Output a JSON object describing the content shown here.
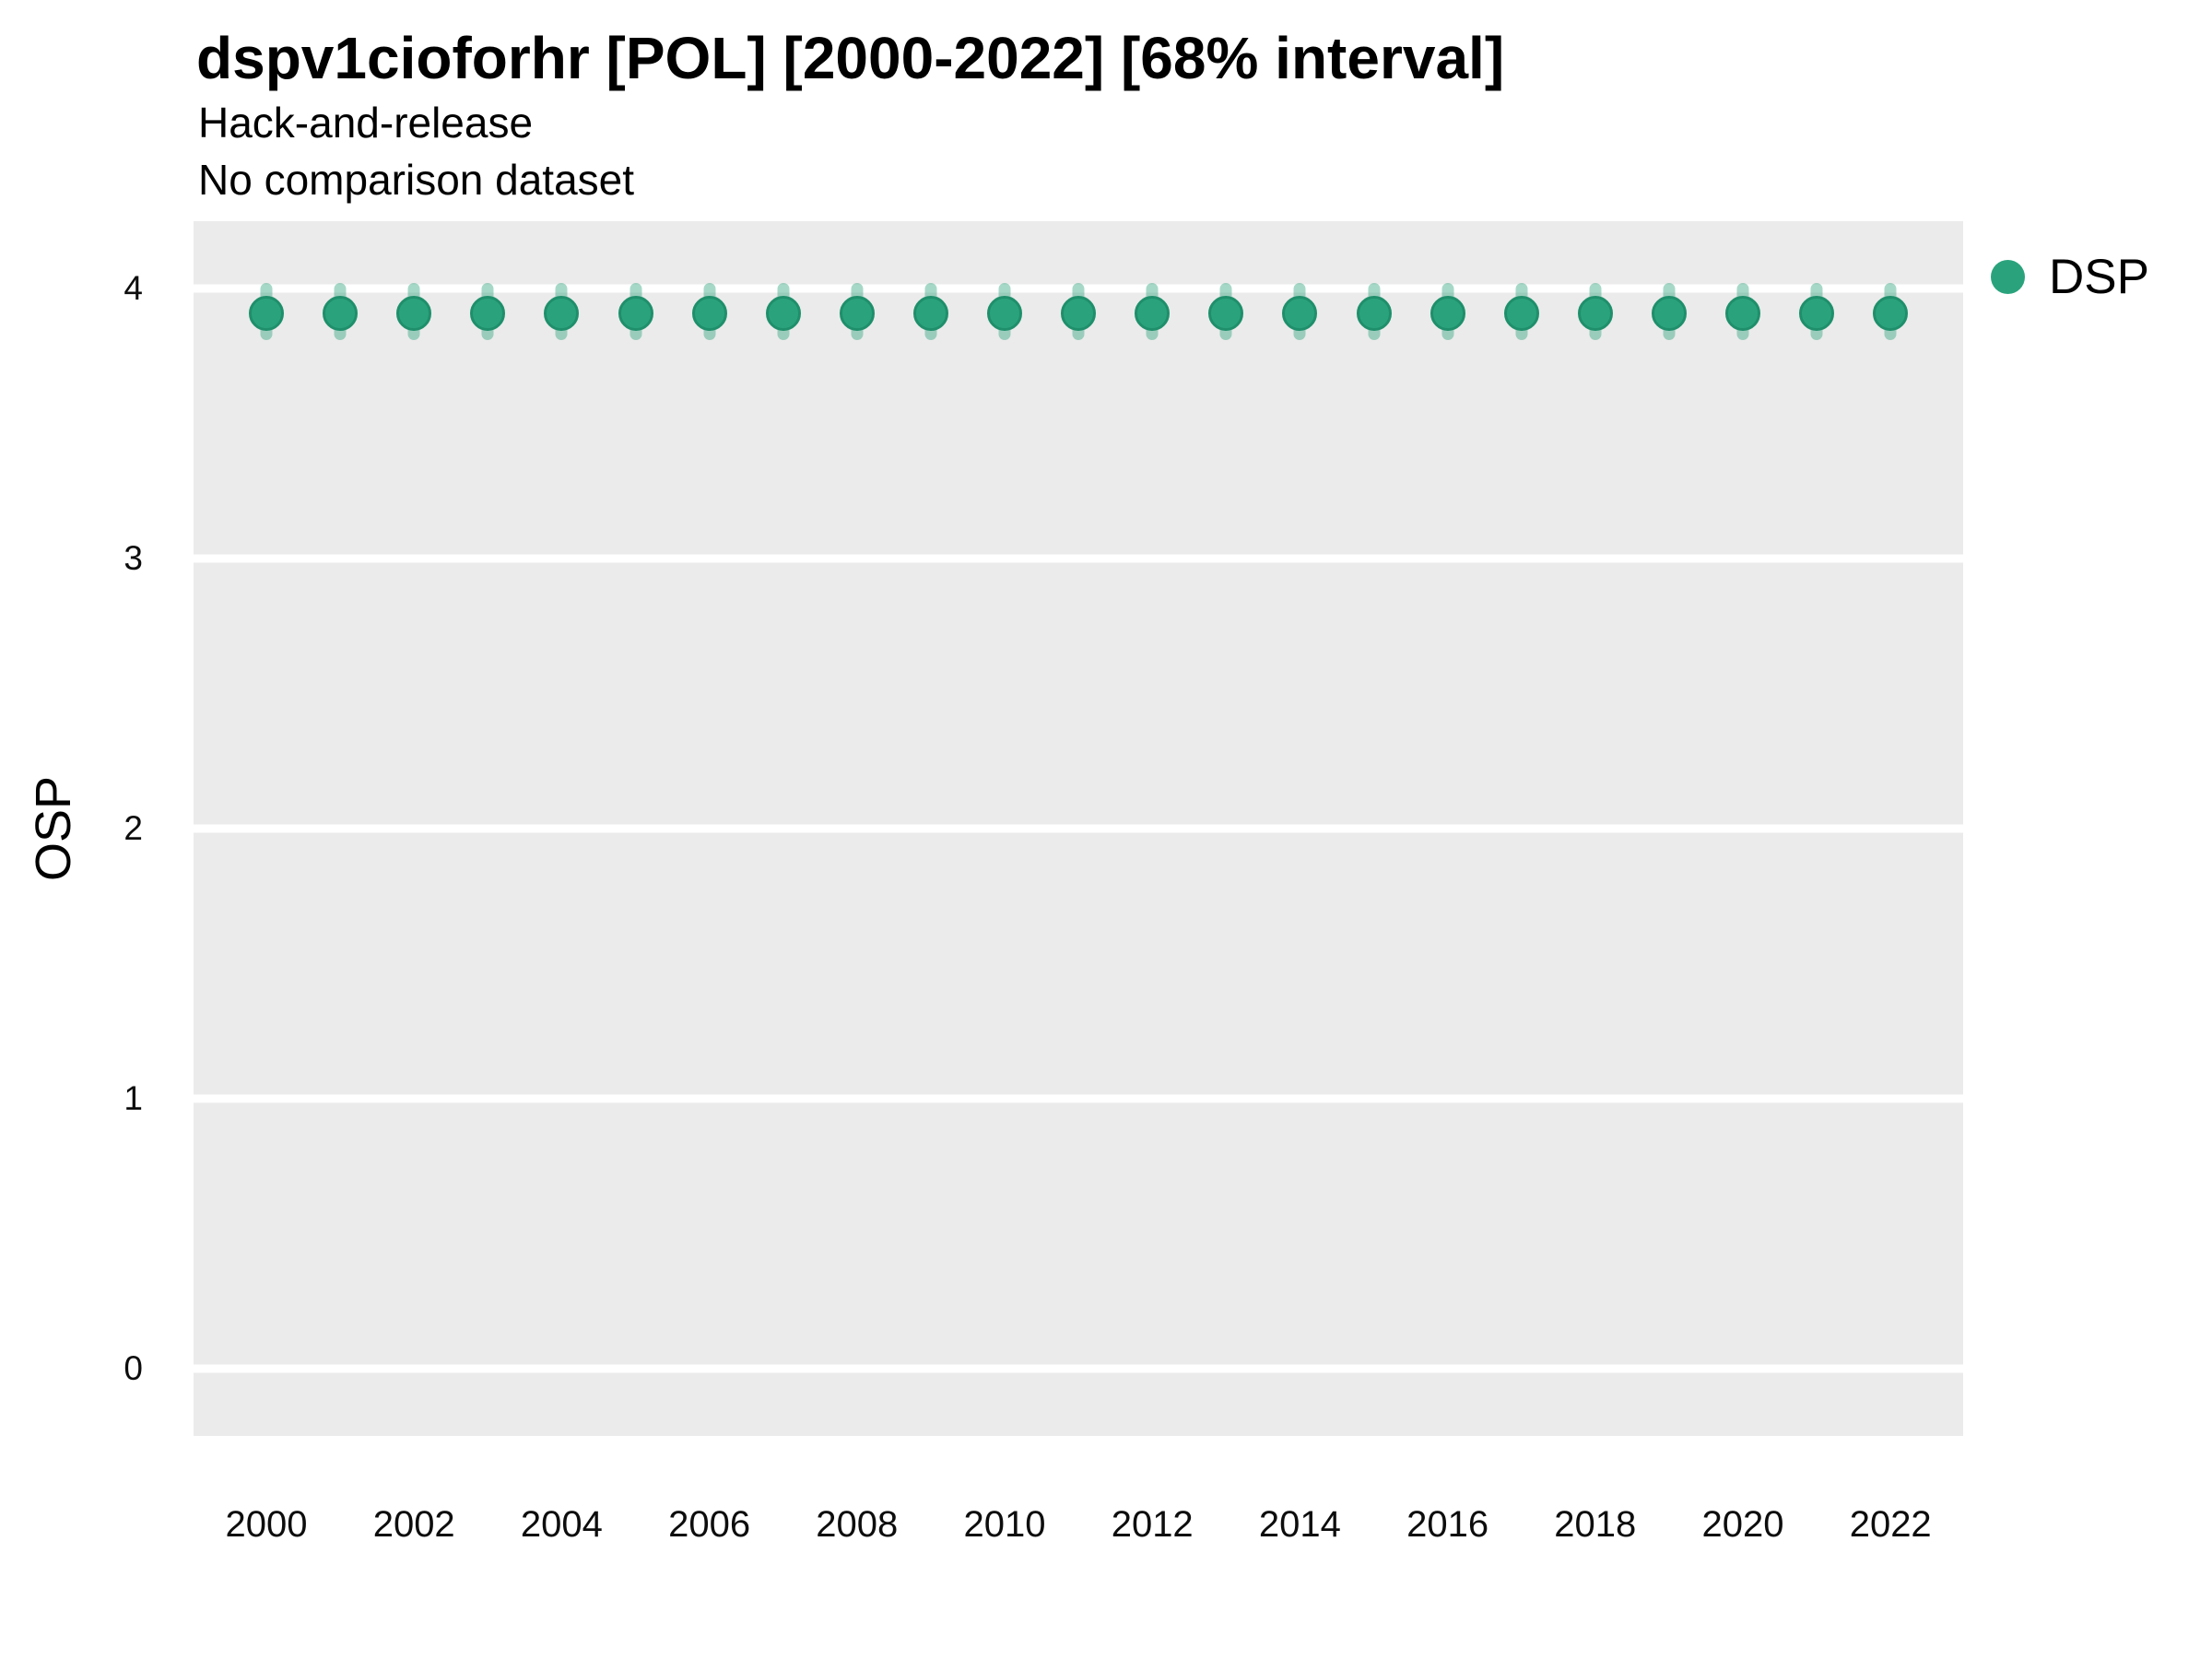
{
  "header": {
    "title": "dspv1cioforhr [POL] [2000-2022] [68% interval]",
    "subtitle": "Hack-and-release",
    "note": "No comparison dataset"
  },
  "legend": {
    "label": "DSP"
  },
  "colors": {
    "point": "#2aa37c",
    "point_ring": "#1f8f6b",
    "interval": "rgba(42, 163, 124, 0.42)",
    "panel_background": "#ebebeb",
    "gridline": "#ffffff",
    "text": "#000000"
  },
  "chart_data": {
    "type": "scatter",
    "title": "dspv1cioforhr [POL] [2000-2022] [68% interval]",
    "subtitle": "Hack-and-release",
    "annotation": "No comparison dataset",
    "xlabel": "",
    "ylabel": "OSP",
    "interval_level": "68%",
    "legend_entries": [
      "DSP"
    ],
    "legend_position": "right-top",
    "grid": "horizontal-major-only",
    "x": [
      2000,
      2001,
      2002,
      2003,
      2004,
      2005,
      2006,
      2007,
      2008,
      2009,
      2010,
      2011,
      2012,
      2013,
      2014,
      2015,
      2016,
      2017,
      2018,
      2019,
      2020,
      2021,
      2022
    ],
    "xticks": [
      2000,
      2002,
      2004,
      2006,
      2008,
      2010,
      2012,
      2014,
      2016,
      2018,
      2020,
      2022
    ],
    "yticks": [
      0,
      1,
      2,
      3,
      4
    ],
    "ylim": [
      -0.25,
      4.25
    ],
    "xlim": [
      1999.0,
      2023.0
    ],
    "series": [
      {
        "name": "DSP",
        "values": [
          3.91,
          3.91,
          3.91,
          3.91,
          3.91,
          3.91,
          3.91,
          3.91,
          3.91,
          3.91,
          3.91,
          3.91,
          3.91,
          3.91,
          3.91,
          3.91,
          3.91,
          3.91,
          3.91,
          3.91,
          3.91,
          3.91,
          3.91
        ],
        "lower": [
          3.81,
          3.81,
          3.81,
          3.81,
          3.81,
          3.81,
          3.81,
          3.81,
          3.81,
          3.81,
          3.81,
          3.81,
          3.81,
          3.81,
          3.81,
          3.81,
          3.81,
          3.81,
          3.81,
          3.81,
          3.81,
          3.81,
          3.81
        ],
        "upper": [
          4.02,
          4.02,
          4.02,
          4.02,
          4.02,
          4.02,
          4.02,
          4.02,
          4.02,
          4.02,
          4.02,
          4.02,
          4.02,
          4.02,
          4.02,
          4.02,
          4.02,
          4.02,
          4.02,
          4.02,
          4.02,
          4.02,
          4.02
        ]
      }
    ]
  }
}
